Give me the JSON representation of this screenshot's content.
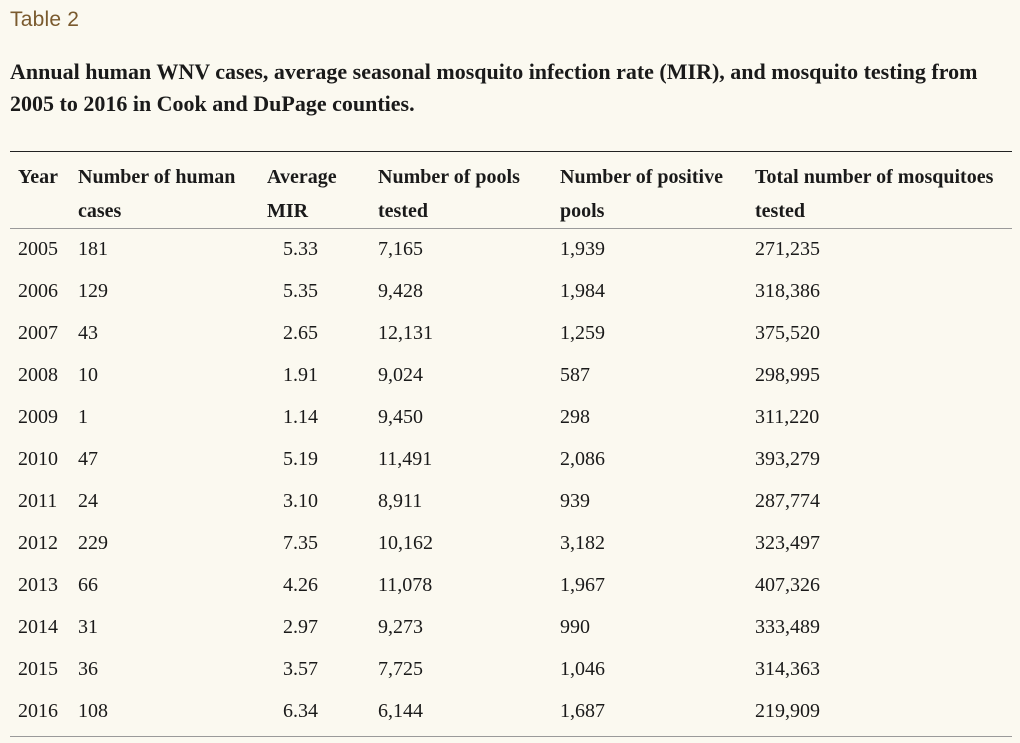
{
  "table_label": "Table 2",
  "caption": "Annual human WNV cases, average seasonal mosquito infection rate (MIR), and mosquito testing from 2005 to 2016 in Cook and DuPage counties.",
  "headers": {
    "year": "Year",
    "cases": "Number of human cases",
    "mir": "Average MIR",
    "pools": "Number of pools tested",
    "positive": "Number of positive pools",
    "mosquitoes": "Total number of mosquitoes tested"
  },
  "rows": [
    {
      "year": "2005",
      "cases": "181",
      "mir": "5.33",
      "pools": "7,165",
      "positive": "1,939",
      "mosquitoes": "271,235"
    },
    {
      "year": "2006",
      "cases": "129",
      "mir": "5.35",
      "pools": "9,428",
      "positive": "1,984",
      "mosquitoes": "318,386"
    },
    {
      "year": "2007",
      "cases": "43",
      "mir": "2.65",
      "pools": "12,131",
      "positive": "1,259",
      "mosquitoes": "375,520"
    },
    {
      "year": "2008",
      "cases": "10",
      "mir": "1.91",
      "pools": "9,024",
      "positive": "587",
      "mosquitoes": "298,995"
    },
    {
      "year": "2009",
      "cases": "1",
      "mir": "1.14",
      "pools": "9,450",
      "positive": "298",
      "mosquitoes": "311,220"
    },
    {
      "year": "2010",
      "cases": "47",
      "mir": "5.19",
      "pools": "11,491",
      "positive": "2,086",
      "mosquitoes": "393,279"
    },
    {
      "year": "2011",
      "cases": "24",
      "mir": "3.10",
      "pools": "8,911",
      "positive": "939",
      "mosquitoes": "287,774"
    },
    {
      "year": "2012",
      "cases": "229",
      "mir": "7.35",
      "pools": "10,162",
      "positive": "3,182",
      "mosquitoes": "323,497"
    },
    {
      "year": "2013",
      "cases": "66",
      "mir": "4.26",
      "pools": "11,078",
      "positive": "1,967",
      "mosquitoes": "407,326"
    },
    {
      "year": "2014",
      "cases": "31",
      "mir": "2.97",
      "pools": "9,273",
      "positive": "990",
      "mosquitoes": "333,489"
    },
    {
      "year": "2015",
      "cases": "36",
      "mir": "3.57",
      "pools": "7,725",
      "positive": "1,046",
      "mosquitoes": "314,363"
    },
    {
      "year": "2016",
      "cases": "108",
      "mir": "6.34",
      "pools": "6,144",
      "positive": "1,687",
      "mosquitoes": "219,909"
    }
  ]
}
